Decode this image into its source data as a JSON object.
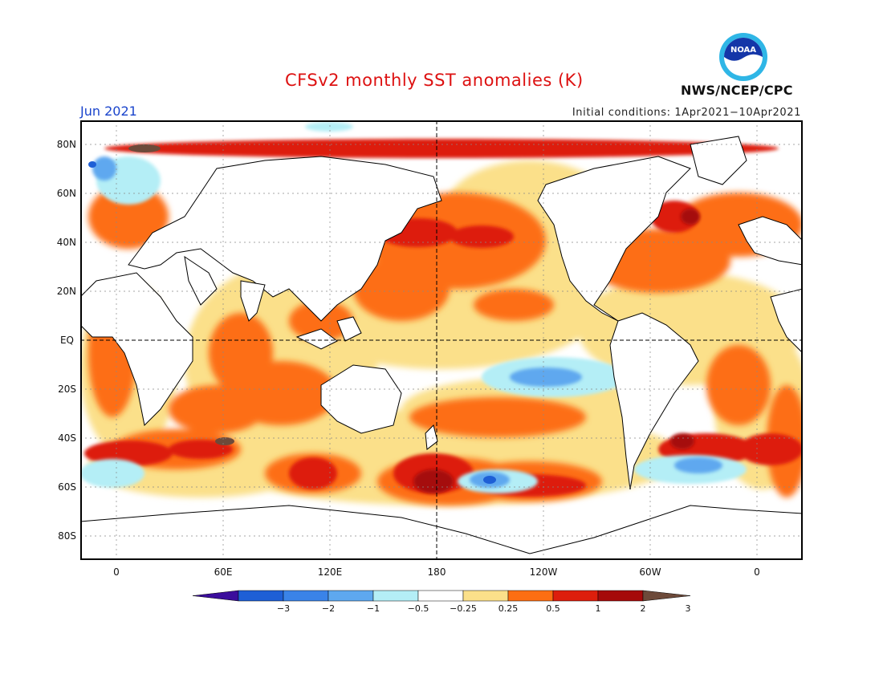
{
  "header": {
    "title": "CFSv2 monthly SST anomalies (K)",
    "period": "Jun 2021",
    "initial_conditions": "Initial conditions: 1Apr2021−10Apr2021",
    "agency": "NWS/NCEP/CPC",
    "logo_text": "NOAA"
  },
  "map": {
    "projection": "cylindrical equidistant, centered on 180",
    "lat_labels": [
      "80N",
      "60N",
      "40N",
      "20N",
      "EQ",
      "20S",
      "40S",
      "60S",
      "80S"
    ],
    "lon_labels": [
      "0",
      "60E",
      "120E",
      "180",
      "120W",
      "60W",
      "0"
    ],
    "grid": "dotted",
    "reference_lines": "dashed equator and 180 meridian"
  },
  "colorbar": {
    "labels": [
      "−3",
      "−2",
      "−1",
      "−0.5",
      "−0.25",
      "0.25",
      "0.5",
      "1",
      "2",
      "3"
    ],
    "colors": [
      "#3b0d9c",
      "#1e5fd6",
      "#3a83e8",
      "#5ea8ef",
      "#b4eef6",
      "#ffffff",
      "#fbe08a",
      "#fd6e12",
      "#dd1e0c",
      "#a50a0a",
      "#6d4a3a"
    ],
    "units": "K"
  },
  "chart_data": {
    "type": "heatmap",
    "title": "CFSv2 monthly SST anomalies (K)",
    "field": "SST anomaly",
    "units": "K",
    "valid": "Jun 2021",
    "initial_conditions": "1Apr2021−10Apr2021",
    "color_levels": [
      -3,
      -2,
      -1,
      -0.5,
      -0.25,
      0.25,
      0.5,
      1,
      2,
      3
    ],
    "features": [
      {
        "region": "North Pacific (30-50N, 150E-150W)",
        "anomaly_range": [
          1,
          2
        ]
      },
      {
        "region": "Eastern equatorial Pacific",
        "anomaly_range": [
          -1,
          -0.25
        ]
      },
      {
        "region": "North Atlantic (30-50N)",
        "anomaly_range": [
          1,
          2
        ]
      },
      {
        "region": "Southern Ocean near 180 (45-60S)",
        "anomaly_range": [
          1,
          3
        ]
      },
      {
        "region": "South Pacific near 120W (55-60S)",
        "anomaly_range": [
          -1,
          -0.5
        ]
      },
      {
        "region": "Indian Ocean",
        "anomaly_range": [
          0.25,
          1
        ]
      }
    ]
  }
}
